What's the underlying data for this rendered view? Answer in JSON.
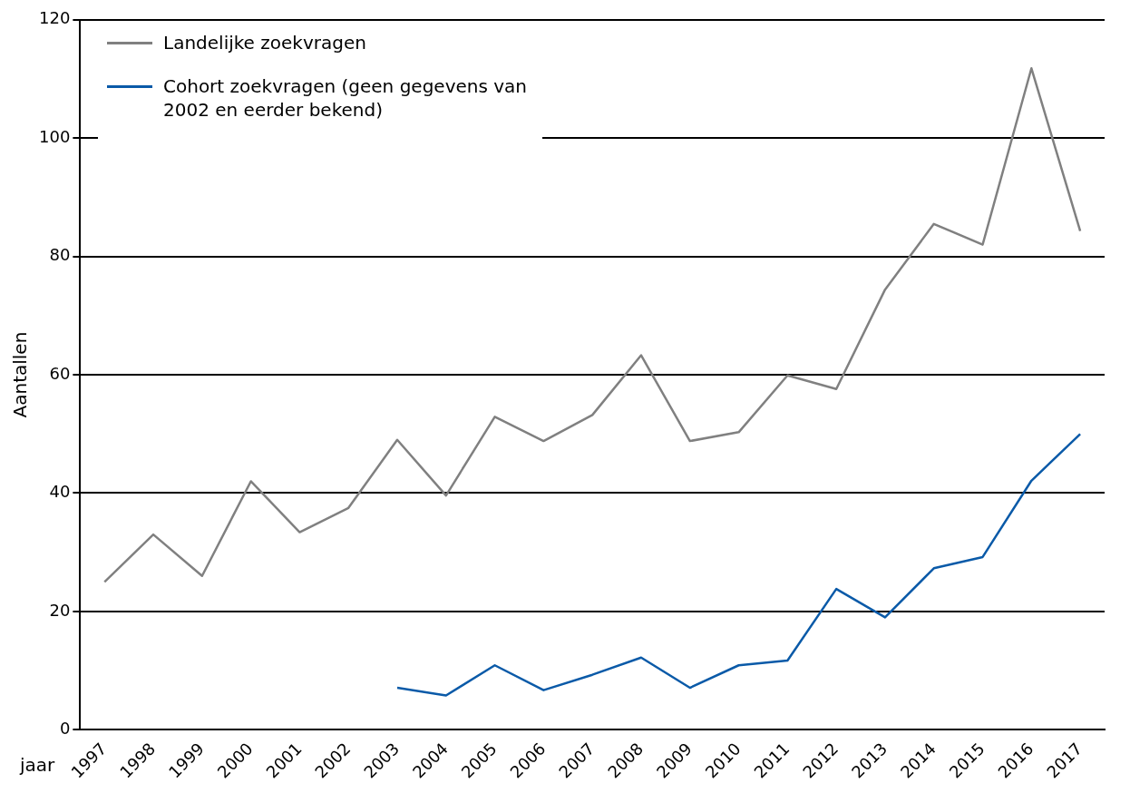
{
  "chart_data": {
    "type": "line",
    "xlabel": "jaar",
    "ylabel": "Aantallen",
    "categories": [
      "1997",
      "1998",
      "1999",
      "2000",
      "2001",
      "2002",
      "2003",
      "2004",
      "2005",
      "2006",
      "2007",
      "2008",
      "2009",
      "2010",
      "2011",
      "2012",
      "2013",
      "2014",
      "2015",
      "2016",
      "2017"
    ],
    "series": [
      {
        "name": "Landelijke zoekvragen",
        "color": "#808080",
        "values": [
          25,
          33,
          26,
          42,
          33.4,
          37.5,
          49,
          39.6,
          52.9,
          48.8,
          53.2,
          63.3,
          48.8,
          50.3,
          59.9,
          57.6,
          74.4,
          85.5,
          82,
          111.8,
          84.3
        ]
      },
      {
        "name": "Cohort zoekvragen (geen gegevens van 2002 en eerder bekend)",
        "color": "#0a5aa8",
        "values": [
          null,
          null,
          null,
          null,
          null,
          null,
          7.1,
          5.8,
          10.9,
          6.7,
          9.3,
          12.2,
          7.1,
          10.9,
          11.7,
          23.8,
          19,
          27.3,
          29.2,
          42.1,
          50
        ]
      }
    ],
    "ylim": [
      0,
      120
    ],
    "yticks": [
      0,
      20,
      40,
      60,
      80,
      100,
      120
    ],
    "grid": "y",
    "legend": "top left",
    "marker": "none",
    "line_style": "solid"
  }
}
